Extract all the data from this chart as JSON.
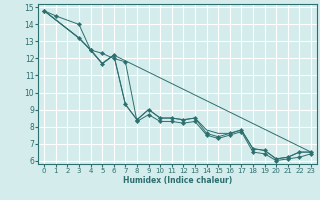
{
  "xlabel": "Humidex (Indice chaleur)",
  "ylabel": "",
  "xlim": [
    -0.5,
    23.5
  ],
  "ylim": [
    5.8,
    15.2
  ],
  "xticks": [
    0,
    1,
    2,
    3,
    4,
    5,
    6,
    7,
    8,
    9,
    10,
    11,
    12,
    13,
    14,
    15,
    16,
    17,
    18,
    19,
    20,
    21,
    22,
    23
  ],
  "yticks": [
    6,
    7,
    8,
    9,
    10,
    11,
    12,
    13,
    14,
    15
  ],
  "bg_color": "#d4ecec",
  "grid_color": "#ffffff",
  "line_color": "#2d6e6e",
  "lines": [
    {
      "x": [
        0,
        1,
        3,
        4,
        5,
        6,
        7,
        8,
        9,
        10,
        11,
        12,
        13,
        14,
        15,
        16,
        17,
        18,
        19,
        20,
        21,
        22,
        23
      ],
      "y": [
        14.8,
        14.5,
        14.0,
        12.5,
        12.3,
        12.0,
        11.8,
        8.3,
        8.7,
        8.3,
        8.3,
        8.2,
        8.3,
        7.5,
        7.3,
        7.5,
        7.7,
        6.5,
        6.4,
        6.0,
        6.1,
        6.2,
        6.4
      ],
      "has_markers": true
    },
    {
      "x": [
        0,
        3,
        4,
        5,
        6,
        7,
        8,
        9,
        10,
        11,
        12,
        13,
        14,
        15,
        16,
        17,
        18,
        19,
        20,
        21,
        22,
        23
      ],
      "y": [
        14.8,
        13.2,
        12.5,
        11.7,
        12.2,
        9.3,
        8.4,
        9.0,
        8.5,
        8.5,
        8.4,
        8.5,
        7.6,
        7.4,
        7.6,
        7.8,
        6.7,
        6.6,
        6.1,
        6.2,
        6.5,
        6.5
      ],
      "has_markers": true
    },
    {
      "x": [
        0,
        3,
        4,
        5,
        6,
        23
      ],
      "y": [
        14.8,
        13.2,
        12.5,
        11.7,
        12.2,
        6.5
      ],
      "has_markers": false
    },
    {
      "x": [
        0,
        3,
        4,
        5,
        6,
        7,
        8,
        9,
        10,
        11,
        12,
        13,
        14,
        15,
        16,
        17,
        18,
        19,
        20,
        21,
        22,
        23
      ],
      "y": [
        14.8,
        13.2,
        12.5,
        11.7,
        12.2,
        9.3,
        8.4,
        9.0,
        8.5,
        8.5,
        8.4,
        8.5,
        7.8,
        7.6,
        7.6,
        7.8,
        6.7,
        6.6,
        6.1,
        6.2,
        6.5,
        6.5
      ],
      "has_markers": false
    }
  ]
}
